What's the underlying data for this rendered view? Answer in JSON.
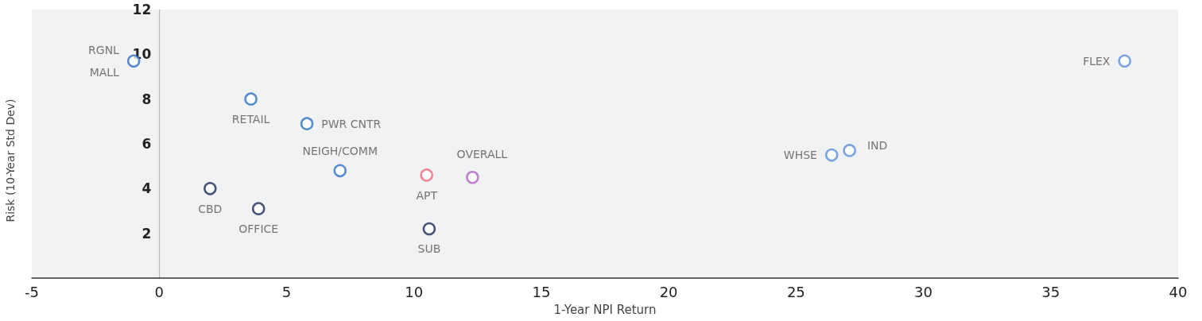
{
  "chart_data": {
    "type": "scatter",
    "xlabel": "1-Year NPI Return",
    "ylabel": "Risk (10-Year Std Dev)",
    "xlim": [
      -5,
      40
    ],
    "xticks": [
      -5,
      0,
      5,
      10,
      15,
      20,
      25,
      30,
      35,
      40
    ],
    "ylim": [
      0,
      12
    ],
    "yticks": [
      2,
      4,
      6,
      8,
      10,
      12
    ],
    "grid": false,
    "marker": "circle",
    "series": [
      {
        "name": "RGNL MALL",
        "color": "#2f6fc0",
        "x": [
          -1.0
        ],
        "values": [
          9.7
        ]
      },
      {
        "name": "RETAIL",
        "color": "#2f6fc0",
        "x": [
          3.6
        ],
        "values": [
          8.0
        ]
      },
      {
        "name": "PWR CNTR",
        "color": "#2f6fc0",
        "x": [
          5.8
        ],
        "values": [
          6.9
        ]
      },
      {
        "name": "NEIGH/COMM",
        "color": "#2f6fc0",
        "x": [
          7.1
        ],
        "values": [
          4.8
        ]
      },
      {
        "name": "CBD",
        "color": "#1c2957",
        "x": [
          2.0
        ],
        "values": [
          4.0
        ]
      },
      {
        "name": "OFFICE",
        "color": "#1c2957",
        "x": [
          3.9
        ],
        "values": [
          3.1
        ]
      },
      {
        "name": "APT",
        "color": "#f06878",
        "x": [
          10.5
        ],
        "values": [
          4.6
        ]
      },
      {
        "name": "OVERALL",
        "color": "#b263c2",
        "x": [
          12.3
        ],
        "values": [
          4.5
        ]
      },
      {
        "name": "SUB",
        "color": "#1c2957",
        "x": [
          10.6
        ],
        "values": [
          2.2
        ]
      },
      {
        "name": "WHSE",
        "color": "#5b8fd8",
        "x": [
          26.4
        ],
        "values": [
          5.5
        ]
      },
      {
        "name": "IND",
        "color": "#5b8fd8",
        "x": [
          27.1
        ],
        "values": [
          5.7
        ]
      },
      {
        "name": "FLEX",
        "color": "#5b8fd8",
        "x": [
          37.9
        ],
        "values": [
          9.7
        ]
      }
    ]
  }
}
